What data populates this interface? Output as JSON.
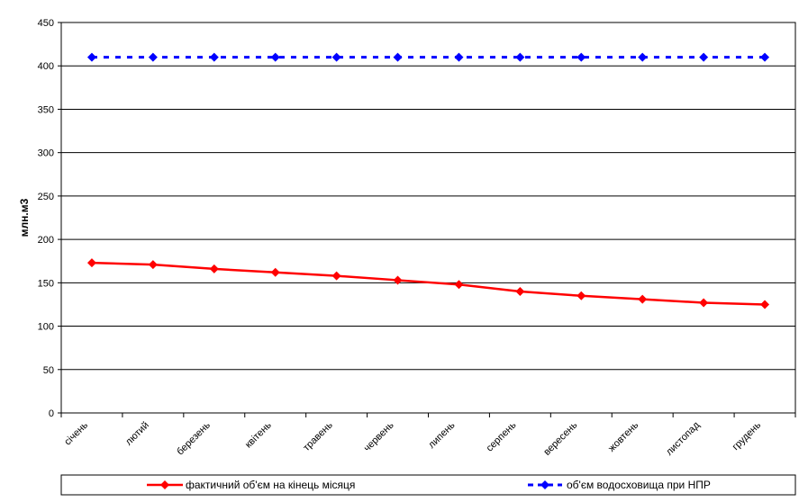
{
  "chart_data": {
    "type": "line",
    "categories": [
      "січень",
      "лютий",
      "березень",
      "квітень",
      "травень",
      "червень",
      "липень",
      "серпень",
      "вересень",
      "жовтень",
      "листопад",
      "грудень"
    ],
    "ylabel": "млн.м3",
    "ylim": [
      0,
      450
    ],
    "yticks": [
      0,
      50,
      100,
      150,
      200,
      250,
      300,
      350,
      400,
      450
    ],
    "grid": true,
    "legend_position": "bottom",
    "series": [
      {
        "name": "фактичний об'єм на кінець місяця",
        "color": "#ff0000",
        "line_style": "solid",
        "marker": "diamond",
        "values": [
          173,
          171,
          166,
          162,
          158,
          153,
          148,
          140,
          135,
          131,
          127,
          125
        ]
      },
      {
        "name": "об'єм водосховища при НПР",
        "color": "#0000ff",
        "line_style": "dashed",
        "marker": "diamond",
        "values": [
          410,
          410,
          410,
          410,
          410,
          410,
          410,
          410,
          410,
          410,
          410,
          410
        ]
      }
    ]
  }
}
